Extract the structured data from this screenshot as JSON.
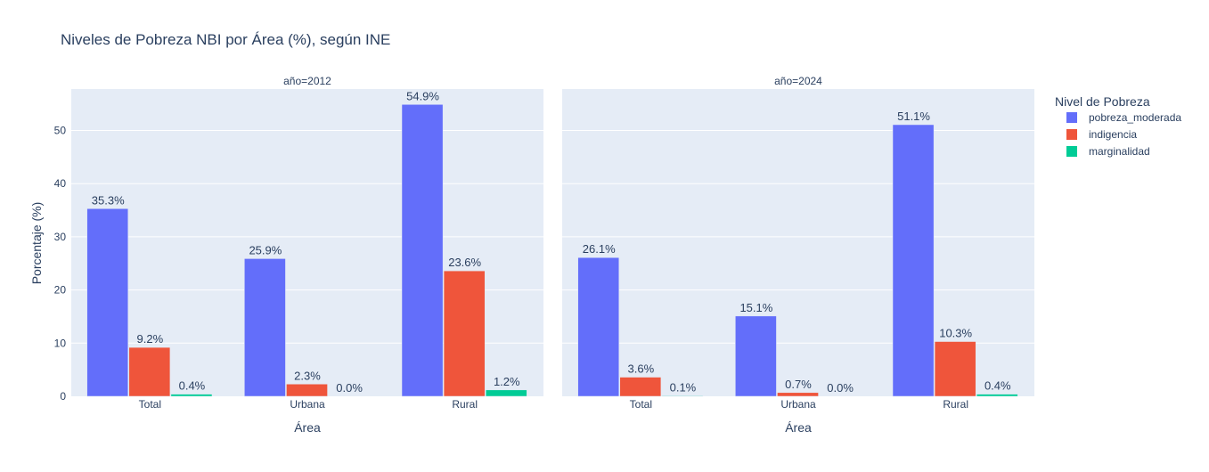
{
  "chart_data": {
    "type": "bar",
    "title": "Niveles de Pobreza NBI por Área (%), según INE",
    "ylabel": "Porcentaje (%)",
    "xlabel": "Área",
    "ylim": [
      0,
      57.8
    ],
    "yticks": [
      0,
      10,
      20,
      30,
      40,
      50
    ],
    "grid": true,
    "legend": {
      "title": "Nivel de Pobreza",
      "placement": "top-right"
    },
    "categories": [
      "Total",
      "Urbana",
      "Rural"
    ],
    "colors": {
      "pobreza_moderada": "#636efa",
      "indigencia": "#ef553b",
      "marginalidad": "#00cc96"
    },
    "panels": [
      {
        "label": "año=2012",
        "series": [
          {
            "name": "pobreza_moderada",
            "values": [
              35.3,
              25.9,
              54.9
            ],
            "labels": [
              "35.3%",
              "25.9%",
              "54.9%"
            ]
          },
          {
            "name": "indigencia",
            "values": [
              9.2,
              2.3,
              23.6
            ],
            "labels": [
              "9.2%",
              "2.3%",
              "23.6%"
            ]
          },
          {
            "name": "marginalidad",
            "values": [
              0.4,
              0.0,
              1.2
            ],
            "labels": [
              "0.4%",
              "0.0%",
              "1.2%"
            ]
          }
        ]
      },
      {
        "label": "año=2024",
        "series": [
          {
            "name": "pobreza_moderada",
            "values": [
              26.1,
              15.1,
              51.1
            ],
            "labels": [
              "26.1%",
              "15.1%",
              "51.1%"
            ]
          },
          {
            "name": "indigencia",
            "values": [
              3.6,
              0.7,
              10.3
            ],
            "labels": [
              "3.6%",
              "0.7%",
              "10.3%"
            ]
          },
          {
            "name": "marginalidad",
            "values": [
              0.1,
              0.0,
              0.4
            ],
            "labels": [
              "0.1%",
              "0.0%",
              "0.4%"
            ]
          }
        ]
      }
    ]
  }
}
